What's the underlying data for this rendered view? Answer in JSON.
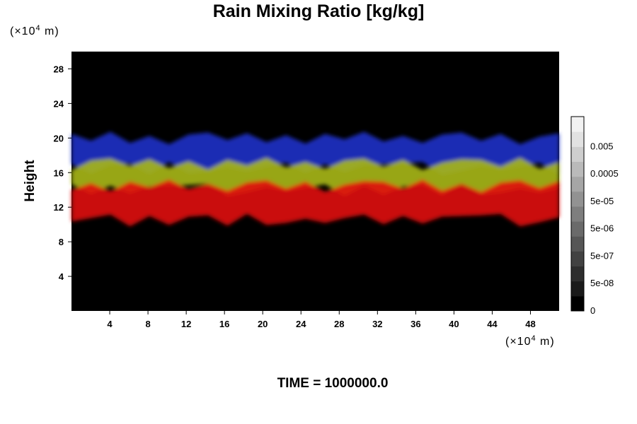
{
  "chart_data": {
    "type": "heatmap",
    "title": "Rain Mixing Ratio [kg/kg]",
    "ylabel": "Height",
    "y_unit": "(×10",
    "x_unit": "(×10",
    "unit_exp": "4",
    "unit_suffix": " m)",
    "footer": "TIME = 1000000.0",
    "xlim": [
      0,
      51
    ],
    "ylim": [
      0,
      30
    ],
    "x_ticks": [
      "4",
      "8",
      "12",
      "16",
      "20",
      "24",
      "28",
      "32",
      "36",
      "40",
      "44",
      "48"
    ],
    "y_ticks": [
      "4",
      "8",
      "12",
      "16",
      "20",
      "24",
      "28"
    ],
    "colorbar": {
      "labels": [
        "0",
        "5e-08",
        "5e-07",
        "5e-06",
        "5e-05",
        "0.0005",
        "0.005"
      ],
      "colors": [
        "#000000",
        "#1a1a1a",
        "#2e2e2e",
        "#424242",
        "#565656",
        "#6a6a6a",
        "#7e7e7e",
        "#929292",
        "#a6a6a6",
        "#bababa",
        "#cecece",
        "#e2e2e2",
        "#f2f2f2"
      ]
    },
    "bands": [
      {
        "name": "upper",
        "color": "#2030c8",
        "y_range": [
          16.5,
          20
        ]
      },
      {
        "name": "middle",
        "color": "#a8b818",
        "y_range": [
          14,
          17
        ]
      },
      {
        "name": "lower",
        "color": "#e01010",
        "y_range": [
          10.5,
          14.5
        ]
      }
    ],
    "background": "#000000"
  }
}
